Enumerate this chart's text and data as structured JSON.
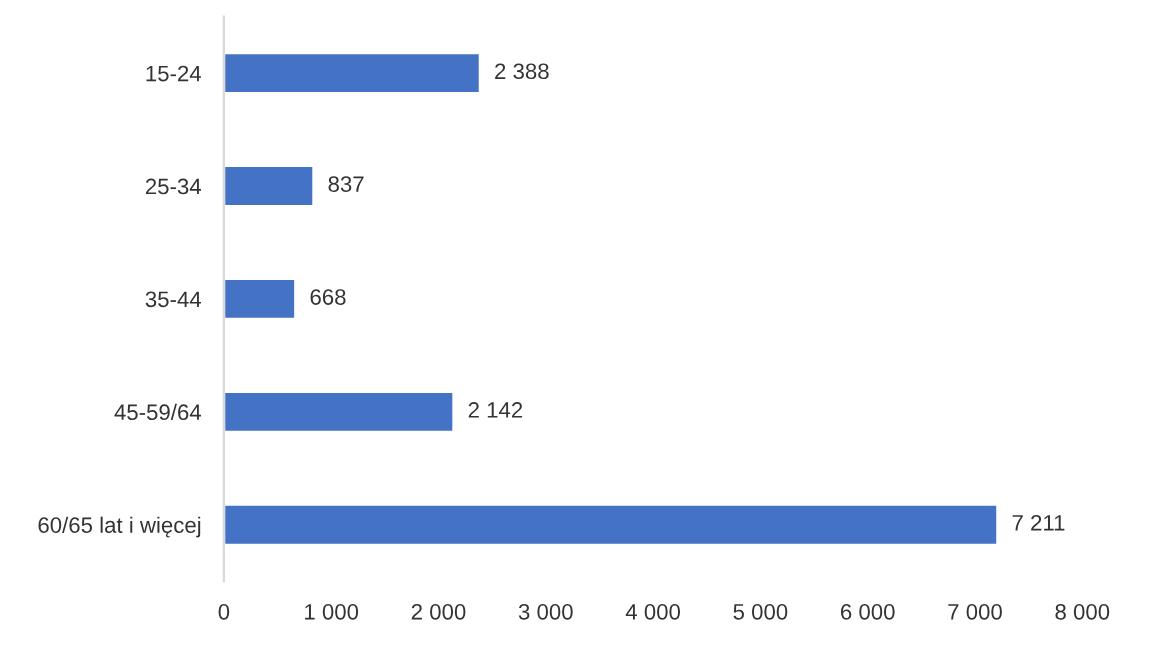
{
  "chart_data": {
    "type": "bar",
    "orientation": "horizontal",
    "categories": [
      "15-24",
      "25-34",
      "35-44",
      "45-59/64",
      "60/65 lat i więcej"
    ],
    "values": [
      2388,
      837,
      668,
      2142,
      7211
    ],
    "value_labels": [
      "2 388",
      "837",
      "668",
      "2 142",
      "7 211"
    ],
    "color": "#4472c4",
    "xlim": [
      0,
      8000
    ],
    "xticks": [
      0,
      {
        "value": 1000,
        "label": "1 000"
      },
      {
        "value": 2000,
        "label": "2 000"
      },
      {
        "value": 3000,
        "label": "3 000"
      },
      {
        "value": 4000,
        "label": "4 000"
      },
      {
        "value": 5000,
        "label": "5 000"
      },
      {
        "value": 6000,
        "label": "6 000"
      },
      {
        "value": 7000,
        "label": "7 000"
      },
      {
        "value": 8000,
        "label": "8 000"
      }
    ],
    "grid": false,
    "legend": false
  }
}
